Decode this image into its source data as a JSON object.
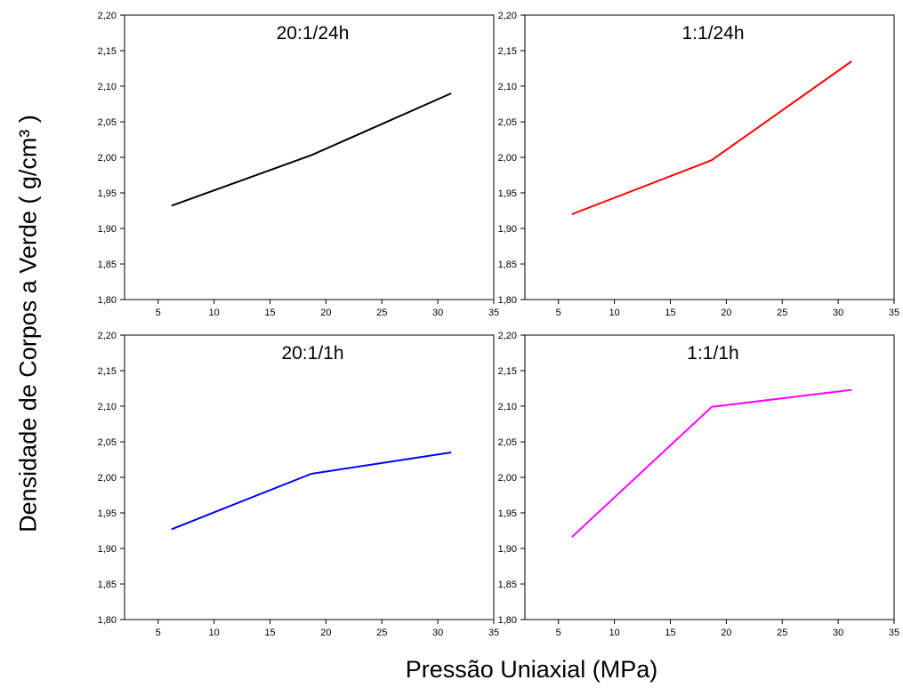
{
  "figure": {
    "ylabel": "Densidade de Corpos a Verde ( g/cm³ )",
    "xlabel": "Pressão Uniaxial (MPa)"
  },
  "chart_data": [
    {
      "type": "line",
      "title": "20:1/24h",
      "color": "#000000",
      "x": [
        6.2,
        18.7,
        31.2
      ],
      "y": [
        1.932,
        2.003,
        2.09
      ],
      "xlim": [
        2,
        35
      ],
      "ylim": [
        1.8,
        2.2
      ],
      "xticks": [
        5,
        10,
        15,
        20,
        25,
        30,
        35
      ],
      "yticks": [
        "1,80",
        "1,85",
        "1,90",
        "1,95",
        "2,00",
        "2,05",
        "2,10",
        "2,15",
        "2,20"
      ]
    },
    {
      "type": "line",
      "title": "1:1/24h",
      "color": "#ff0000",
      "x": [
        6.2,
        18.7,
        31.2
      ],
      "y": [
        1.92,
        1.996,
        2.135
      ],
      "xlim": [
        2,
        35
      ],
      "ylim": [
        1.8,
        2.2
      ],
      "xticks": [
        5,
        10,
        15,
        20,
        25,
        30,
        35
      ],
      "yticks": [
        "1,80",
        "1,85",
        "1,90",
        "1,95",
        "2,00",
        "2,05",
        "2,10",
        "2,15",
        "2,20"
      ]
    },
    {
      "type": "line",
      "title": "20:1/1h",
      "color": "#0000ff",
      "x": [
        6.2,
        18.7,
        31.2
      ],
      "y": [
        1.927,
        2.005,
        2.035
      ],
      "xlim": [
        2,
        35
      ],
      "ylim": [
        1.8,
        2.2
      ],
      "xticks": [
        5,
        10,
        15,
        20,
        25,
        30,
        35
      ],
      "yticks": [
        "1,80",
        "1,85",
        "1,90",
        "1,95",
        "2,00",
        "2,05",
        "2,10",
        "2,15",
        "2,20"
      ]
    },
    {
      "type": "line",
      "title": "1:1/1h",
      "color": "#ff00ff",
      "x": [
        6.2,
        18.7,
        31.2
      ],
      "y": [
        1.916,
        2.099,
        2.123
      ],
      "xlim": [
        2,
        35
      ],
      "ylim": [
        1.8,
        2.2
      ],
      "xticks": [
        5,
        10,
        15,
        20,
        25,
        30,
        35
      ],
      "yticks": [
        "1,80",
        "1,85",
        "1,90",
        "1,95",
        "2,00",
        "2,05",
        "2,10",
        "2,15",
        "2,20"
      ]
    }
  ]
}
